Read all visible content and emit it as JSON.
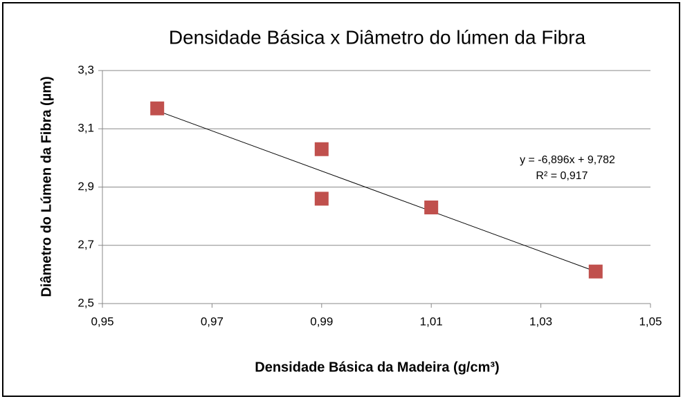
{
  "chart_data": {
    "type": "scatter",
    "title": "Densidade Básica x Diâmetro do lúmen da Fibra",
    "x_label": "Densidade Básica da Madeira (g/cm³)",
    "y_label": "Diâmetro do Lúmen da Fibra (µm)",
    "series": [
      {
        "color": "#c0504d",
        "x": [
          0.96,
          0.99,
          0.99,
          1.01,
          1.04
        ],
        "values": [
          3.17,
          3.03,
          2.86,
          2.83,
          2.61
        ]
      }
    ],
    "trendline": {
      "slope": -6.896,
      "intercept": 9.782,
      "color": "#000000",
      "label": "y = -6,896x + 9,782",
      "r2": 0.917,
      "r2_label": "R² = 0,917"
    },
    "xlim": [
      0.95,
      1.05
    ],
    "xticks": [
      {
        "value": 0.95,
        "label": "0,95"
      },
      {
        "value": 0.97,
        "label": "0,97"
      },
      {
        "value": 0.99,
        "label": "0,99"
      },
      {
        "value": 1.01,
        "label": "1,01"
      },
      {
        "value": 1.03,
        "label": "1,03"
      },
      {
        "value": 1.05,
        "label": "1,05"
      }
    ],
    "ylim": [
      2.5,
      3.3
    ],
    "yticks": [
      {
        "value": 2.5,
        "label": "2,5"
      },
      {
        "value": 2.7,
        "label": "2,7"
      },
      {
        "value": 2.9,
        "label": "2,9"
      },
      {
        "value": 3.1,
        "label": "3,1"
      },
      {
        "value": 3.3,
        "label": "3,3"
      }
    ],
    "grid": true
  }
}
